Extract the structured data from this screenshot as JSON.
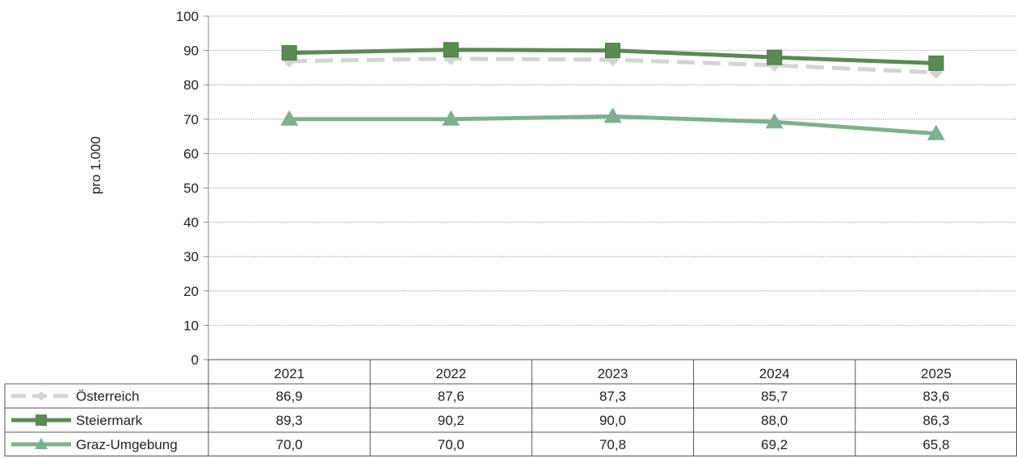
{
  "chart_data": {
    "type": "line",
    "title": "",
    "xlabel": "",
    "ylabel": "pro 1.000",
    "ylim": [
      0,
      100
    ],
    "yticks": [
      0,
      10,
      20,
      30,
      40,
      50,
      60,
      70,
      80,
      90,
      100
    ],
    "categories": [
      "2021",
      "2022",
      "2023",
      "2024",
      "2025"
    ],
    "grid": true,
    "legend": "bottom-table",
    "series": [
      {
        "name": "Österreich",
        "values": [
          86.9,
          87.6,
          87.3,
          85.7,
          83.6
        ],
        "labels": [
          "86,9",
          "87,6",
          "87,3",
          "85,7",
          "83,6"
        ],
        "color": "#d4d4d4",
        "marker": "diamond",
        "style": "dashed"
      },
      {
        "name": "Steiermark",
        "values": [
          89.3,
          90.2,
          90.0,
          88.0,
          86.3
        ],
        "labels": [
          "89,3",
          "90,2",
          "90,0",
          "88,0",
          "86,3"
        ],
        "color": "#5b8a54",
        "marker": "square",
        "style": "solid"
      },
      {
        "name": "Graz-Umgebung",
        "values": [
          70.0,
          70.0,
          70.8,
          69.2,
          65.8
        ],
        "labels": [
          "70,0",
          "70,0",
          "70,8",
          "69,2",
          "65,8"
        ],
        "color": "#7fb08e",
        "marker": "triangle",
        "style": "solid"
      }
    ]
  }
}
